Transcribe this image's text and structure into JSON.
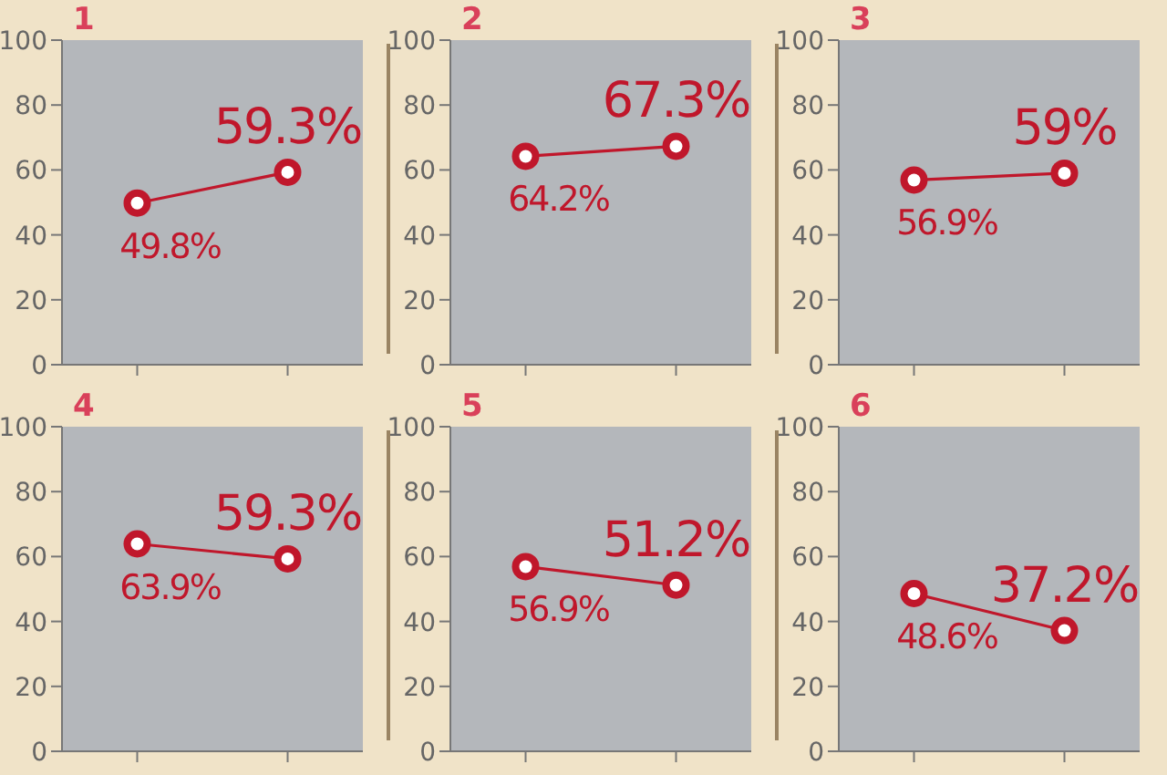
{
  "chart_data": [
    {
      "type": "line",
      "title": "1",
      "categories": [
        null,
        null
      ],
      "values": [
        49.8,
        59.3
      ],
      "value_labels": [
        "49.8%",
        "59.3%"
      ],
      "color": "#c0172b",
      "ylim": [
        0,
        100
      ],
      "yticks": [
        0,
        20,
        40,
        60,
        80,
        100
      ],
      "marker": "circle",
      "grid": false,
      "legend": false
    },
    {
      "type": "line",
      "title": "2",
      "categories": [
        null,
        null
      ],
      "values": [
        64.2,
        67.3
      ],
      "value_labels": [
        "64.2%",
        "67.3%"
      ],
      "color": "#c0172b",
      "ylim": [
        0,
        100
      ],
      "yticks": [
        0,
        20,
        40,
        60,
        80,
        100
      ],
      "marker": "circle",
      "grid": false,
      "legend": false
    },
    {
      "type": "line",
      "title": "3",
      "categories": [
        null,
        null
      ],
      "values": [
        56.9,
        59
      ],
      "value_labels": [
        "56.9%",
        "59%"
      ],
      "color": "#c0172b",
      "ylim": [
        0,
        100
      ],
      "yticks": [
        0,
        20,
        40,
        60,
        80,
        100
      ],
      "marker": "circle",
      "grid": false,
      "legend": false
    },
    {
      "type": "line",
      "title": "4",
      "categories": [
        null,
        null
      ],
      "values": [
        63.9,
        59.3
      ],
      "value_labels": [
        "63.9%",
        "59.3%"
      ],
      "color": "#c0172b",
      "ylim": [
        0,
        100
      ],
      "yticks": [
        0,
        20,
        40,
        60,
        80,
        100
      ],
      "marker": "circle",
      "grid": false,
      "legend": false
    },
    {
      "type": "line",
      "title": "5",
      "categories": [
        null,
        null
      ],
      "values": [
        56.9,
        51.2
      ],
      "value_labels": [
        "56.9%",
        "51.2%"
      ],
      "color": "#c0172b",
      "ylim": [
        0,
        100
      ],
      "yticks": [
        0,
        20,
        40,
        60,
        80,
        100
      ],
      "marker": "circle",
      "grid": false,
      "legend": false
    },
    {
      "type": "line",
      "title": "6",
      "categories": [
        null,
        null
      ],
      "values": [
        48.6,
        37.2
      ],
      "value_labels": [
        "48.6%",
        "37.2%"
      ],
      "color": "#c0172b",
      "ylim": [
        0,
        100
      ],
      "yticks": [
        0,
        20,
        40,
        60,
        80,
        100
      ],
      "marker": "circle",
      "grid": false,
      "legend": false
    }
  ]
}
